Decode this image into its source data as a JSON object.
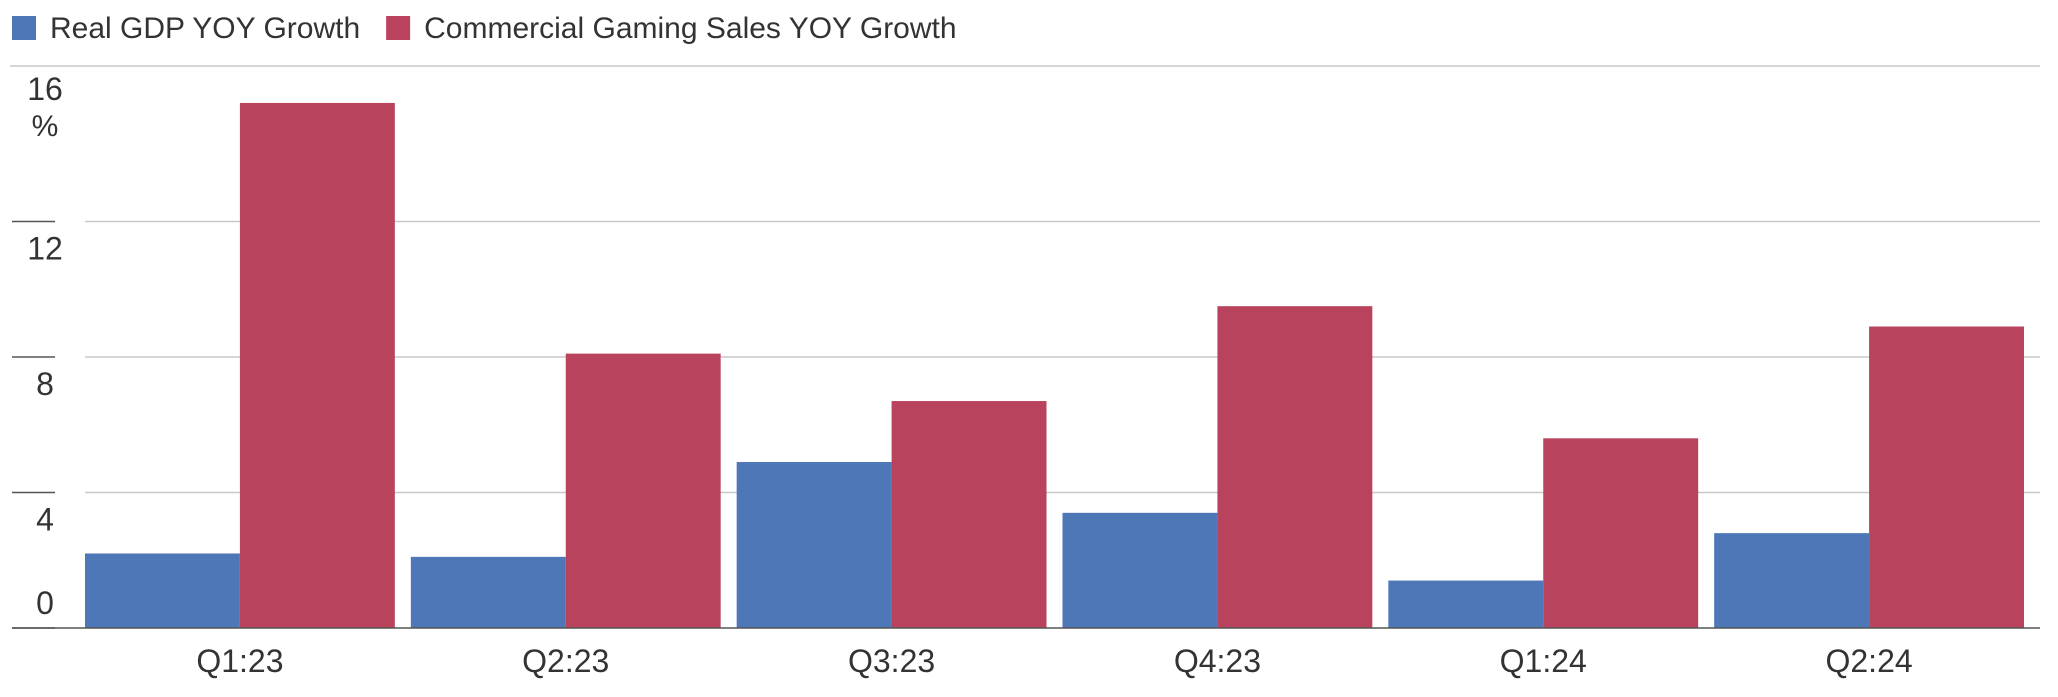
{
  "colors": {
    "gdp": "#4e77b8",
    "gaming": "#b9435d",
    "grid": "#c9c9c9",
    "axis": "#555555",
    "text": "#333333"
  },
  "chart_data": {
    "type": "bar",
    "title": "",
    "xlabel": "",
    "ylabel": "",
    "unit_label": "%",
    "categories": [
      "Q1:23",
      "Q2:23",
      "Q3:23",
      "Q4:23",
      "Q1:24",
      "Q2:24"
    ],
    "series": [
      {
        "name": "Real GDP YOY Growth",
        "color_key": "gdp",
        "values": [
          2.2,
          2.1,
          4.9,
          3.4,
          1.4,
          2.8
        ]
      },
      {
        "name": "Commercial Gaming Sales YOY Growth",
        "color_key": "gaming",
        "values": [
          15.5,
          8.1,
          6.7,
          9.5,
          5.6,
          8.9
        ]
      }
    ],
    "ylim": [
      0,
      16
    ],
    "yticks": [
      0,
      4,
      8,
      12,
      16
    ],
    "grid": true,
    "legend_position": "top-left"
  }
}
